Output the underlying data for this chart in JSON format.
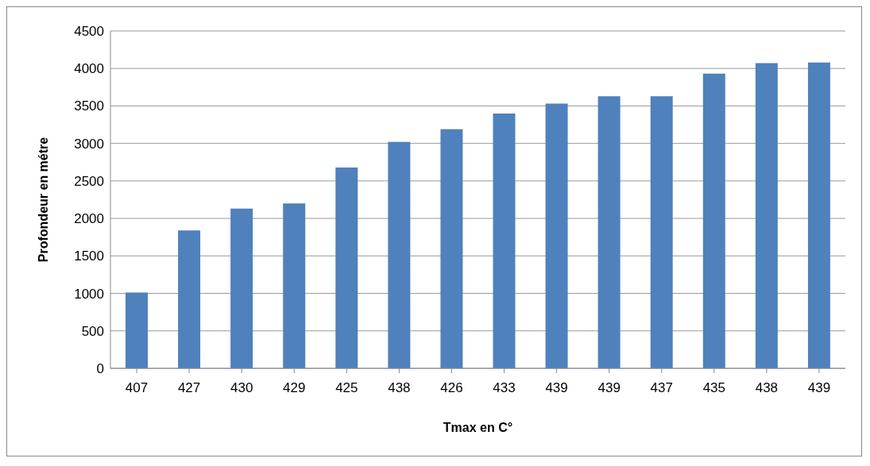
{
  "chart_data": {
    "type": "bar",
    "xlabel": "Tmax en C°",
    "ylabel": "Profondeur en métre",
    "categories": [
      "407",
      "427",
      "430",
      "429",
      "425",
      "438",
      "426",
      "433",
      "439",
      "439",
      "437",
      "435",
      "438",
      "439"
    ],
    "values": [
      1010,
      1840,
      2130,
      2200,
      2680,
      3020,
      3190,
      3400,
      3530,
      3630,
      3630,
      3930,
      4070,
      4080
    ],
    "color": "#4f81bd",
    "ylim": [
      0,
      4500
    ],
    "yticks": [
      0,
      500,
      1000,
      1500,
      2000,
      2500,
      3000,
      3500,
      4000,
      4500
    ],
    "grid": "y"
  }
}
